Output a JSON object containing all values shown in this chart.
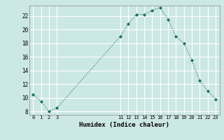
{
  "x": [
    0,
    1,
    2,
    3,
    11,
    12,
    13,
    14,
    15,
    16,
    17,
    18,
    19,
    20,
    21,
    22,
    23
  ],
  "y": [
    10.5,
    9.5,
    8.0,
    8.5,
    19.0,
    20.8,
    22.2,
    22.2,
    22.8,
    23.2,
    21.5,
    19.0,
    18.0,
    15.5,
    12.5,
    11.0,
    9.8
  ],
  "xlabel": "Humidex (Indice chaleur)",
  "bg_color": "#cce8e4",
  "line_color": "#1a6b5e",
  "grid_color": "#ffffff",
  "xticks": [
    0,
    1,
    2,
    3,
    11,
    12,
    13,
    14,
    15,
    16,
    17,
    18,
    19,
    20,
    21,
    22,
    23
  ],
  "yticks": [
    8,
    10,
    12,
    14,
    16,
    18,
    20,
    22
  ],
  "ylim": [
    7.5,
    23.5
  ],
  "xlim": [
    -0.5,
    23.5
  ]
}
